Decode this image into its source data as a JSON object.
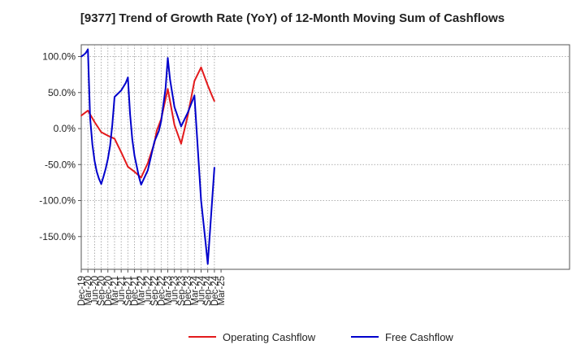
{
  "chart_data": {
    "type": "line",
    "title": "[9377]  Trend of Growth Rate (YoY) of 12-Month Moving Sum of Cashflows",
    "xlabel": "",
    "ylabel": "",
    "x_tick_labels": [
      "Dec-19",
      "Mar-20",
      "Jun-20",
      "Sep-20",
      "Dec-20",
      "Mar-21",
      "Jun-21",
      "Sep-21",
      "Dec-21",
      "Mar-22",
      "Jun-22",
      "Sep-22",
      "Dec-22",
      "Mar-23",
      "Jun-23",
      "Sep-23",
      "Dec-23",
      "Mar-24",
      "Jun-24",
      "Sep-24",
      "Dec-24",
      "Mar-25"
    ],
    "y_ticks": [
      100,
      50,
      0,
      -50,
      -100,
      -150
    ],
    "y_tick_labels": [
      "100.0%",
      "50.0%",
      "0.0%",
      "-50.0%",
      "-100.0%",
      "-150.0%"
    ],
    "ylim": [
      -195,
      112
    ],
    "grid": true,
    "legend_position": "bottom-center",
    "series": [
      {
        "name": "Operating Cashflow",
        "color": "#e31a1c",
        "points": [
          {
            "x": "Dec-19",
            "y": 18
          },
          {
            "x": "Mar-20",
            "y": 25
          },
          {
            "x": "Jun-20",
            "y": 9
          },
          {
            "x": "Sep-20",
            "y": -5
          },
          {
            "x": "Dec-20",
            "y": -10
          },
          {
            "x": "Mar-21",
            "y": -14
          },
          {
            "x": "Jun-21",
            "y": -33
          },
          {
            "x": "Sep-21",
            "y": -53
          },
          {
            "x": "Dec-21",
            "y": -60
          },
          {
            "x": "Mar-22",
            "y": -68
          },
          {
            "x": "Jun-22",
            "y": -48
          },
          {
            "x": "Sep-22",
            "y": -20
          },
          {
            "x": "Oct-22",
            "y": -3
          },
          {
            "x": "Dec-22",
            "y": 13
          },
          {
            "x": "Mar-23",
            "y": 55
          },
          {
            "x": "Jun-23",
            "y": 5
          },
          {
            "x": "Sep-23",
            "y": -21
          },
          {
            "x": "Dec-23",
            "y": 18
          },
          {
            "x": "Mar-24",
            "y": 66
          },
          {
            "x": "Jun-24",
            "y": 85
          },
          {
            "x": "Sep-24",
            "y": 60
          },
          {
            "x": "Nov-24",
            "y": 45
          },
          {
            "x": "Dec-24",
            "y": 38
          }
        ]
      },
      {
        "name": "Free Cashflow",
        "color": "#0000cc",
        "points": [
          {
            "x": "Dec-19",
            "y": 100
          },
          {
            "x": "Jan-20",
            "y": 102
          },
          {
            "x": "Feb-20",
            "y": 105
          },
          {
            "x": "Mar-20",
            "y": 110
          },
          {
            "x": "Apr-20",
            "y": 15
          },
          {
            "x": "May-20",
            "y": -22
          },
          {
            "x": "Jun-20",
            "y": -45
          },
          {
            "x": "Jul-20",
            "y": -60
          },
          {
            "x": "Aug-20",
            "y": -70
          },
          {
            "x": "Sep-20",
            "y": -77
          },
          {
            "x": "Oct-20",
            "y": -67
          },
          {
            "x": "Nov-20",
            "y": -56
          },
          {
            "x": "Dec-20",
            "y": -42
          },
          {
            "x": "Jan-21",
            "y": -24
          },
          {
            "x": "Feb-21",
            "y": 5
          },
          {
            "x": "Mar-21",
            "y": 44
          },
          {
            "x": "Jun-21",
            "y": 53
          },
          {
            "x": "Aug-21",
            "y": 63
          },
          {
            "x": "Sep-21",
            "y": 71
          },
          {
            "x": "Oct-21",
            "y": 20
          },
          {
            "x": "Nov-21",
            "y": -15
          },
          {
            "x": "Dec-21",
            "y": -38
          },
          {
            "x": "Feb-22",
            "y": -67
          },
          {
            "x": "Mar-22",
            "y": -78
          },
          {
            "x": "Jun-22",
            "y": -58
          },
          {
            "x": "Sep-22",
            "y": -18
          },
          {
            "x": "Nov-22",
            "y": -3
          },
          {
            "x": "Dec-22",
            "y": 10
          },
          {
            "x": "Feb-23",
            "y": 56
          },
          {
            "x": "Mar-23",
            "y": 98
          },
          {
            "x": "Apr-23",
            "y": 68
          },
          {
            "x": "Jun-23",
            "y": 30
          },
          {
            "x": "Sep-23",
            "y": 3
          },
          {
            "x": "Dec-23",
            "y": 22
          },
          {
            "x": "Mar-24",
            "y": 46
          },
          {
            "x": "Jun-24",
            "y": -100
          },
          {
            "x": "Aug-24",
            "y": -158
          },
          {
            "x": "Sep-24",
            "y": -188
          },
          {
            "x": "Dec-24",
            "y": -54
          }
        ]
      }
    ]
  }
}
